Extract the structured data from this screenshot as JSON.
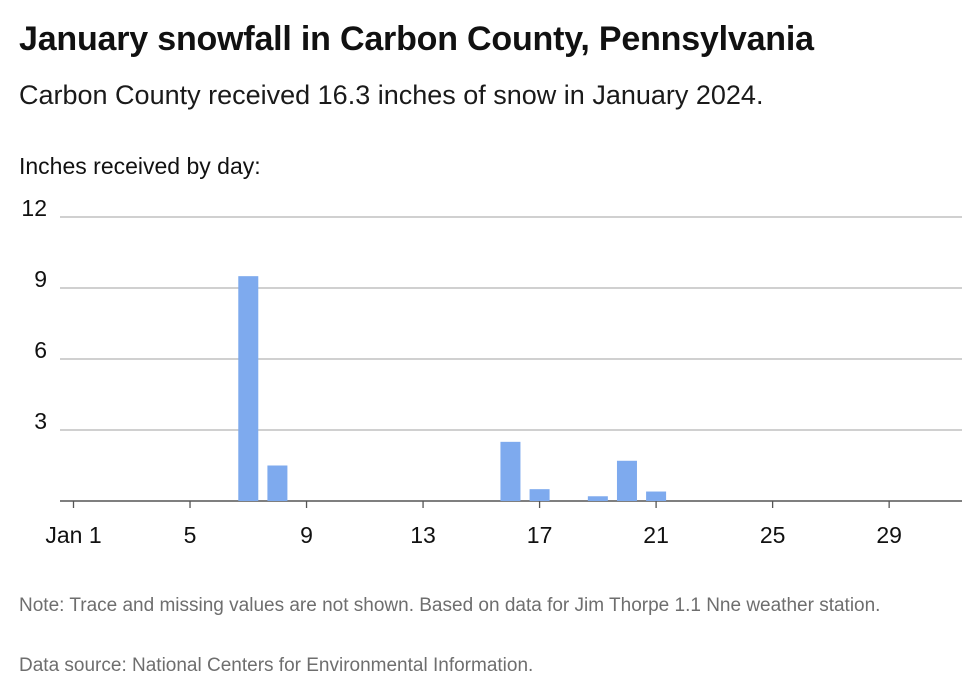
{
  "title": "January snowfall in Carbon County, Pennsylvania",
  "subtitle": "Carbon County received 16.3 inches of snow in January 2024.",
  "note": "Note: Trace and missing values are not shown. Based on data for Jim Thorpe 1.1 Nne weather station.",
  "source": "Data source: National Centers for Environmental Information.",
  "chart_data": {
    "type": "bar",
    "ylabel": "Inches received by day:",
    "xlabel": "",
    "ylim": [
      0,
      12
    ],
    "yticks": [
      3,
      6,
      9,
      12
    ],
    "xlim": [
      1,
      31
    ],
    "xticks": [
      {
        "day": 1,
        "label": "Jan 1"
      },
      {
        "day": 5,
        "label": "5"
      },
      {
        "day": 9,
        "label": "9"
      },
      {
        "day": 13,
        "label": "13"
      },
      {
        "day": 17,
        "label": "17"
      },
      {
        "day": 21,
        "label": "21"
      },
      {
        "day": 25,
        "label": "25"
      },
      {
        "day": 29,
        "label": "29"
      }
    ],
    "grid": true,
    "bar_color": "#7eaaee",
    "x": [
      7,
      8,
      16,
      17,
      19,
      20,
      21
    ],
    "values": [
      9.5,
      1.5,
      2.5,
      0.5,
      0.2,
      1.7,
      0.4
    ]
  }
}
